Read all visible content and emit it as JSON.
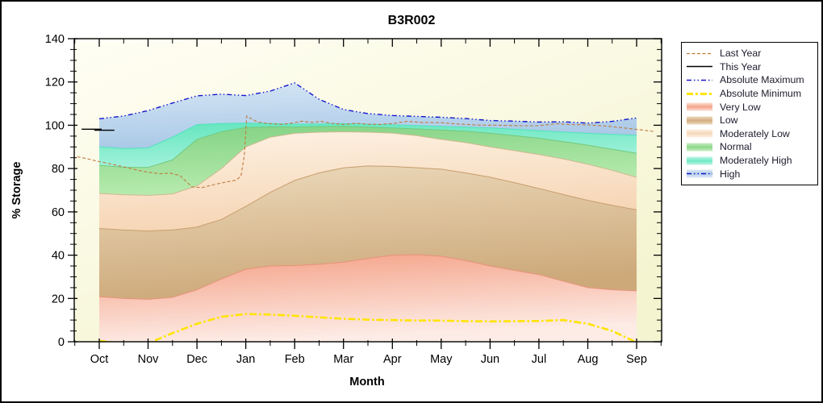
{
  "chart_data": {
    "type": "area",
    "title": "B3R002",
    "xlabel": "Month",
    "ylabel": "% Storage",
    "ylim": [
      0,
      140
    ],
    "months": [
      "Oct",
      "Nov",
      "Dec",
      "Jan",
      "Feb",
      "Mar",
      "Apr",
      "May",
      "Jun",
      "Jul",
      "Aug",
      "Sep"
    ],
    "y_axis": {
      "major_ticks": [
        0,
        20,
        40,
        60,
        80,
        100,
        120,
        140
      ],
      "minor_step": 5
    },
    "x_step_months": 0.5,
    "plot_background": {
      "from": "#fffef4",
      "to": "#f4f4d0"
    },
    "boundaries": {
      "absolute_maximum": [
        103,
        104.3,
        106.8,
        110.3,
        113.6,
        114.4,
        113.7,
        115.8,
        119.6,
        112.0,
        107.3,
        105.4,
        104.5,
        104.1,
        103.7,
        103.1,
        102.2,
        101.9,
        101.5,
        101.6,
        101.0,
        101.8,
        103.4
      ],
      "moderately_high_top": [
        90,
        89.3,
        89.5,
        94.5,
        100.3,
        100.8,
        101.0,
        100.8,
        100.5,
        100.6,
        100.8,
        100.5,
        100.2,
        99.9,
        99.5,
        99.2,
        98.8,
        98.2,
        97.5,
        96.9,
        96.3,
        95.8,
        95.4
      ],
      "normal_top": [
        81.5,
        80.6,
        80.5,
        84.0,
        93.5,
        97.0,
        99.0,
        99.3,
        99.2,
        99.4,
        99.5,
        99.2,
        98.8,
        98.3,
        97.8,
        97.2,
        96.3,
        95.2,
        94.0,
        92.5,
        90.8,
        88.9,
        87.0
      ],
      "moderately_low_top": [
        68.5,
        67.9,
        67.6,
        68.3,
        72.0,
        80.0,
        90.0,
        94.5,
        96.3,
        96.8,
        97.0,
        96.8,
        96.4,
        95.2,
        93.5,
        92.0,
        90.0,
        88.3,
        86.5,
        84.5,
        82.0,
        79.2,
        76.0
      ],
      "low_top": [
        52.3,
        51.6,
        51.2,
        51.6,
        53.0,
        56.5,
        62.5,
        69.0,
        74.5,
        78.0,
        80.3,
        81.2,
        81.0,
        80.4,
        79.7,
        78.0,
        76.0,
        73.5,
        70.8,
        68.0,
        65.3,
        63.0,
        60.9
      ],
      "very_low_top": [
        20.8,
        20.0,
        19.6,
        20.5,
        24.0,
        29.0,
        33.5,
        35.0,
        35.2,
        35.8,
        36.8,
        38.5,
        40.0,
        40.2,
        39.5,
        37.5,
        35.0,
        33.0,
        31.0,
        28.0,
        25.0,
        24.0,
        23.5
      ],
      "absolute_minimum": [
        0.4,
        -0.8,
        -0.8,
        4.0,
        8.3,
        11.5,
        12.8,
        12.6,
        12.0,
        11.3,
        10.6,
        10.2,
        10.0,
        9.8,
        9.8,
        9.5,
        9.4,
        9.5,
        9.6,
        10.0,
        8.3,
        5.0,
        -0.3
      ]
    },
    "bands": [
      {
        "name": "Very Low",
        "key": "very_low_top",
        "base": "zero",
        "fill_top": "#f4a085",
        "fill_bottom": "#fdece6",
        "edge": "#e8927a"
      },
      {
        "name": "Low",
        "key": "low_top",
        "base": "very_low_top",
        "fill_top": "#ecdabc",
        "fill_bottom": "#cda97a",
        "edge": "#c89e6e"
      },
      {
        "name": "Moderately Low",
        "key": "moderately_low_top",
        "base": "low_top",
        "fill_top": "#fdf2e4",
        "fill_bottom": "#f6d5b4",
        "edge": "#cdb88e"
      },
      {
        "name": "Normal",
        "key": "normal_top",
        "base": "moderately_low_top",
        "fill_top": "#82d284",
        "fill_bottom": "#b9ecb0",
        "edge": "#72c97e"
      },
      {
        "name": "Moderately High",
        "key": "moderately_high_top",
        "base": "normal_top",
        "fill_top": "#63e6bd",
        "fill_bottom": "#a4f2db",
        "edge": "#4fe3bc"
      },
      {
        "name": "High",
        "key": "absolute_maximum",
        "base": "moderately_high_top",
        "fill_top": "#d6e6f5",
        "fill_bottom": "#a8c8e6",
        "edge": null
      }
    ],
    "lines": {
      "absolute_maximum": {
        "label": "Absolute Maximum",
        "color": "#1515cc",
        "dash": "6 3 1.5 3 1.5 3",
        "width": 1.4
      },
      "absolute_minimum": {
        "label": "Absolute Minimum",
        "color": "#ffe400",
        "dash": "9 3 2.5 3",
        "width": 2.6
      },
      "last_year": {
        "label": "Last Year",
        "color": "#bf7a3d",
        "dash": "4 2.5",
        "width": 1.1,
        "points": [
          [
            -0.45,
            85.5
          ],
          [
            -0.2,
            84.3
          ],
          [
            0,
            83.2
          ],
          [
            0.3,
            81.8
          ],
          [
            0.5,
            80.8
          ],
          [
            0.8,
            79.2
          ],
          [
            1,
            78.3
          ],
          [
            1.25,
            77.6
          ],
          [
            1.45,
            77.9
          ],
          [
            1.65,
            76.8
          ],
          [
            1.9,
            71.5
          ],
          [
            2.1,
            71.2
          ],
          [
            2.35,
            72.6
          ],
          [
            2.6,
            73.8
          ],
          [
            2.8,
            74.6
          ],
          [
            2.9,
            76.5
          ],
          [
            2.97,
            86.0
          ],
          [
            3.02,
            104.3
          ],
          [
            3.1,
            103.2
          ],
          [
            3.25,
            101.4
          ],
          [
            3.5,
            100.7
          ],
          [
            3.75,
            100.4
          ],
          [
            4,
            101.2
          ],
          [
            4.15,
            101.9
          ],
          [
            4.35,
            101.3
          ],
          [
            4.55,
            101.8
          ],
          [
            4.75,
            100.9
          ],
          [
            5,
            100.4
          ],
          [
            5.25,
            100.9
          ],
          [
            5.5,
            100.5
          ],
          [
            5.75,
            100.4
          ],
          [
            6,
            100.8
          ],
          [
            6.3,
            101.8
          ],
          [
            6.6,
            101.3
          ],
          [
            7,
            101.2
          ],
          [
            7.4,
            100.5
          ],
          [
            7.8,
            100.1
          ],
          [
            8.2,
            100.0
          ],
          [
            8.6,
            99.8
          ],
          [
            9,
            99.8
          ],
          [
            9.35,
            100.7
          ],
          [
            9.65,
            100.3
          ],
          [
            10,
            100.2
          ],
          [
            10.4,
            99.6
          ],
          [
            10.8,
            98.6
          ],
          [
            11,
            98.1
          ],
          [
            11.37,
            97.1
          ]
        ]
      },
      "this_year": {
        "label": "This Year",
        "color": "#000000",
        "width": 1.4,
        "segments": [
          [
            [
              -0.36,
              98.2
            ],
            [
              0.05,
              98.2
            ]
          ],
          [
            [
              -0.1,
              97.7
            ],
            [
              0.31,
              97.7
            ]
          ]
        ]
      }
    }
  },
  "legend": {
    "items": [
      {
        "label": "Last Year",
        "type": "line",
        "color": "#bf7a3d",
        "dash": "4 2.5",
        "width": 1.2
      },
      {
        "label": "This Year",
        "type": "line",
        "color": "#000000",
        "dash": "",
        "width": 1.5
      },
      {
        "label": "Absolute Maximum",
        "type": "line",
        "color": "#1515cc",
        "dash": "6 3 1.5 3 1.5 3",
        "width": 1.5
      },
      {
        "label": "Absolute Minimum",
        "type": "line",
        "color": "#ffe400",
        "dash": "8 3 3 3",
        "width": 3
      },
      {
        "label": "Very Low",
        "type": "band",
        "color": "#f4a58b",
        "color2": "#fcdfd4"
      },
      {
        "label": "Low",
        "type": "band",
        "color": "#d4ad7f",
        "color2": "#eddcc1"
      },
      {
        "label": "Moderately Low",
        "type": "band",
        "color": "#f6d8ba",
        "color2": "#fdf1e3"
      },
      {
        "label": "Normal",
        "type": "band",
        "color": "#8cd88c",
        "color2": "#c9eec1"
      },
      {
        "label": "Moderately High",
        "type": "band",
        "color": "#70e9c5",
        "color2": "#bef5e4"
      },
      {
        "label": "High",
        "type": "band",
        "color": "#b5d1ea",
        "color2": "#dde9f6",
        "line": {
          "color": "#1515cc",
          "dash": "6 3 1.5 3 1.5 3"
        }
      }
    ]
  }
}
